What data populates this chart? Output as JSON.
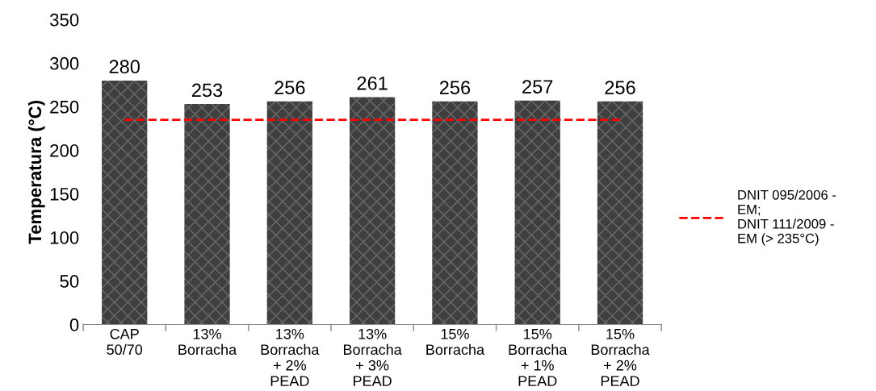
{
  "chart_data": {
    "type": "bar",
    "ylabel": "Temperatura (°C)",
    "categories": [
      "CAP\n50/70",
      "13%\nBorracha",
      "13%\nBorracha\n+ 2%\nPEAD",
      "13%\nBorracha\n+ 3%\nPEAD",
      "15%\nBorracha",
      "15%\nBorracha\n+ 1%\nPEAD",
      "15%\nBorracha\n+ 2%\nPEAD"
    ],
    "values": [
      280,
      253,
      256,
      261,
      256,
      257,
      256
    ],
    "color": "#3f3f3f",
    "data_labels": true,
    "ylim": [
      0,
      350
    ],
    "yticks": [
      0,
      50,
      100,
      150,
      200,
      250,
      300,
      350
    ],
    "ref_lines": [
      {
        "axis": "y",
        "value": 235,
        "label": "DNIT 095/2006 -\nEM;\nDNIT 111/2009 -\nEM (> 235°C)",
        "color": "#ff0000",
        "line_style": "dashed"
      }
    ],
    "grid": false,
    "legend": "right"
  }
}
